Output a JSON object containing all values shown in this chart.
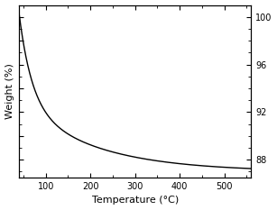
{
  "xlim": [
    40,
    560
  ],
  "ylim": [
    86.5,
    101.0
  ],
  "xticks": [
    100,
    200,
    300,
    400,
    500
  ],
  "yticks_right": [
    88,
    92,
    96,
    100
  ],
  "xlabel": "Temperature (°C)",
  "ylabel": "Weight (%)",
  "line_color": "#000000",
  "bg_color": "#ffffff",
  "curve_x_start": 40,
  "curve_x_end": 560,
  "A1": 7.5,
  "k1": 0.035,
  "A2": 5.8,
  "k2": 0.006,
  "baseline": 87.0
}
